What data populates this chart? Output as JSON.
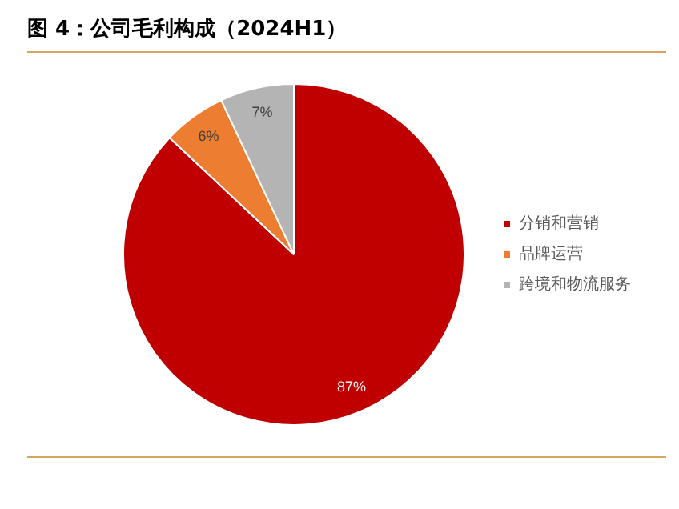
{
  "chart_data": {
    "type": "pie",
    "title": "图 4：公司毛利构成（2024H1）",
    "categories": [
      "分销和营销",
      "品牌运营",
      "跨境和物流服务"
    ],
    "values": [
      87,
      6,
      7
    ],
    "colors": [
      "#c00000",
      "#ed7d31",
      "#b4b4b4"
    ],
    "value_labels": [
      "87%",
      "6%",
      "7%"
    ],
    "legend": "right"
  }
}
